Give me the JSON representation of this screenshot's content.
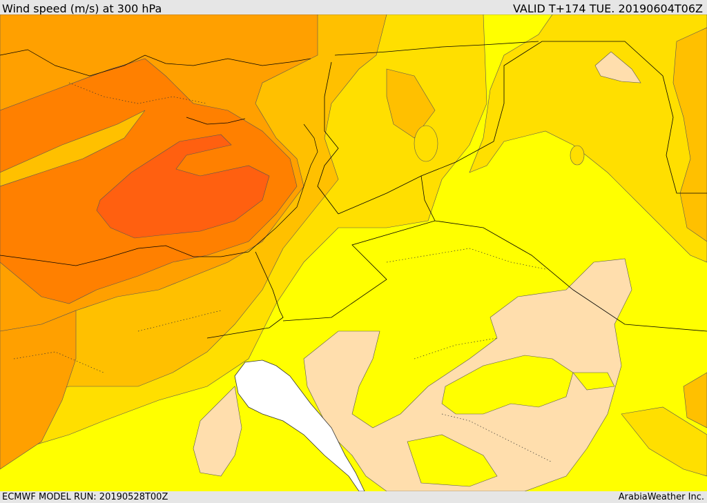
{
  "header": {
    "title": "Wind speed (m/s) at 300 hPa",
    "valid": "VALID T+174 TUE. 20190604T06Z"
  },
  "footer": {
    "model_run": "ECMWF MODEL RUN: 20190528T00Z",
    "credit": "ArabiaWeather Inc."
  },
  "colors": {
    "band_1": "#ffdead",
    "band_2": "#ffff00",
    "band_3": "#ffdf00",
    "band_4": "#ffc000",
    "band_5": "#ffa000",
    "band_6": "#ff8000",
    "band_7": "#ff6010",
    "sea": "#ffffff"
  }
}
